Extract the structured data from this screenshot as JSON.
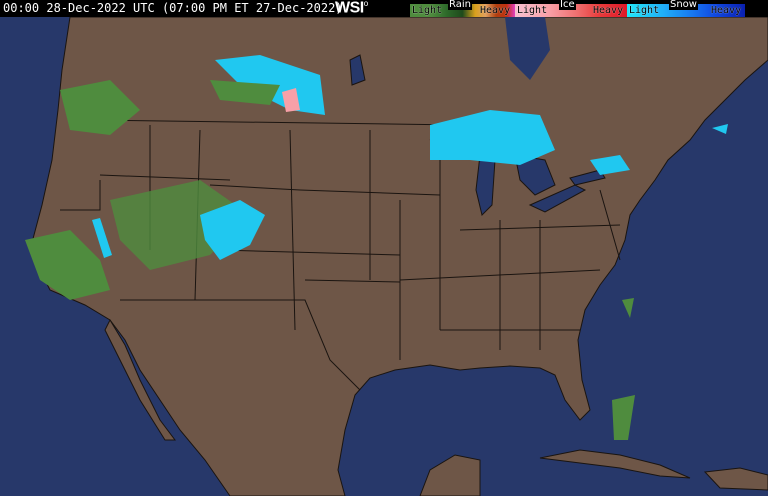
{
  "header": {
    "timestamp": "00:00 28-Dec-2022 UTC  (07:00 PM ET 27-Dec-2022)",
    "logo": "WSI"
  },
  "legend": [
    {
      "title": "Rain",
      "light": "Light",
      "heavy": "Heavy",
      "colors": [
        "#4f8c3e",
        "#2d6a2a",
        "#1e4a1c",
        "#d9a01c",
        "#e07a10",
        "#b04010",
        "#e040c0"
      ]
    },
    {
      "title": "Ice",
      "light": "Light",
      "heavy": "Heavy",
      "colors": [
        "#f8c0d0",
        "#f8a0a8",
        "#f07070",
        "#e83c3c",
        "#e01828"
      ]
    },
    {
      "title": "Snow",
      "light": "Light",
      "heavy": "Heavy",
      "colors": [
        "#20e8f8",
        "#20b0f8",
        "#1878f0",
        "#1048e0",
        "#0a20b0"
      ]
    }
  ],
  "colors": {
    "land": "#6e5647",
    "water": "#27386a",
    "borders": "#1a1410"
  }
}
